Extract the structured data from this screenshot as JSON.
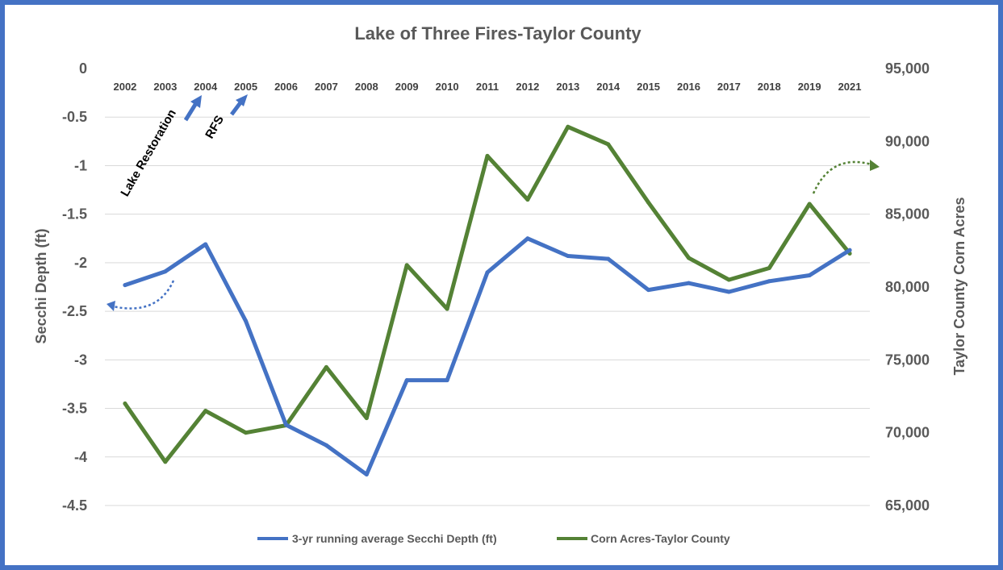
{
  "chart_data": {
    "type": "line",
    "title": "Lake of Three Fires-Taylor County",
    "categories": [
      "2002",
      "2003",
      "2004",
      "2005",
      "2006",
      "2007",
      "2008",
      "2009",
      "2010",
      "2011",
      "2012",
      "2013",
      "2014",
      "2015",
      "2016",
      "2017",
      "2018",
      "2019",
      "2021"
    ],
    "x_axis_position": "top",
    "ylabel": "Secchi Depth (ft)",
    "y2label": "Taylor County Corn Acres",
    "ylim": [
      -4.5,
      0
    ],
    "y2lim": [
      65000,
      95000
    ],
    "yticks": [
      "0",
      "-0.5",
      "-1",
      "-1.5",
      "-2",
      "-2.5",
      "-3",
      "-3.5",
      "-4",
      "-4.5"
    ],
    "y2ticks": [
      "95,000",
      "90,000",
      "85,000",
      "80,000",
      "75,000",
      "70,000",
      "65,000"
    ],
    "grid": true,
    "legend_position": "bottom",
    "series": [
      {
        "name": "3-yr running average Secchi Depth (ft)",
        "axis": "left",
        "color": "#4472c4",
        "values": [
          -2.23,
          -2.09,
          -1.81,
          -2.6,
          -3.67,
          -3.88,
          -4.18,
          -3.21,
          -3.21,
          -2.1,
          -1.75,
          -1.93,
          -1.96,
          -2.28,
          -2.21,
          -2.3,
          -2.19,
          -2.13,
          -1.87
        ]
      },
      {
        "name": "Corn Acres-Taylor County",
        "axis": "right",
        "color": "#548235",
        "values": [
          72000,
          68000,
          71500,
          70000,
          70500,
          74500,
          71000,
          81500,
          78500,
          89000,
          86000,
          91000,
          89800,
          85800,
          82000,
          80500,
          81300,
          85700,
          82300
        ]
      }
    ],
    "annotations": [
      {
        "text": "Lake Restoration",
        "year": "2004"
      },
      {
        "text": "RFS",
        "year": "2005"
      }
    ]
  }
}
